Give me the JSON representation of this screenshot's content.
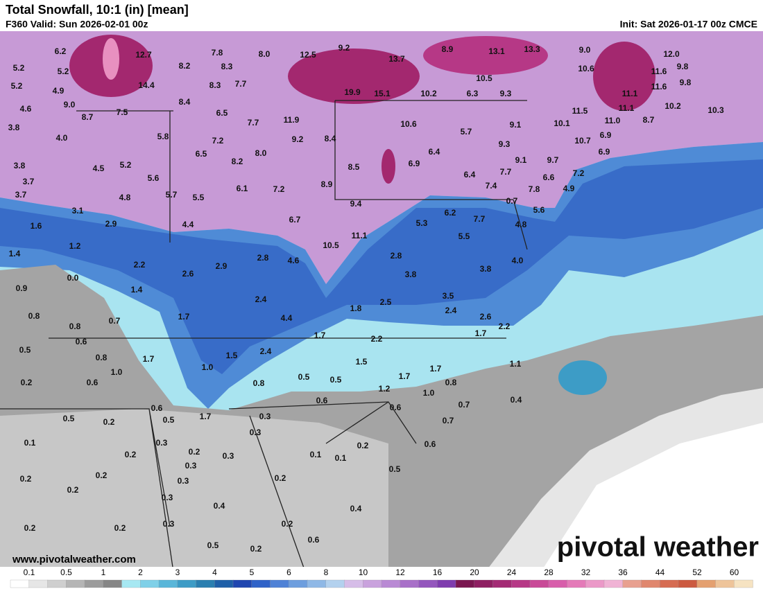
{
  "header": {
    "title": "Total Snowfall, 10:1 (in) [mean]",
    "valid": "F360 Valid: Sun 2026-02-01 00z",
    "init": "Init: Sat 2026-01-17 00z CMCE"
  },
  "labels": [
    "6.2",
    "12.7",
    "7.8",
    "8.0",
    "12.5",
    "9.2",
    "8.9",
    "13.1",
    "13.3",
    "9.0",
    "12.0",
    "5.2",
    "5.2",
    "8.2",
    "8.3",
    "13.7",
    "10.6",
    "11.6",
    "9.8",
    "5.2",
    "4.9",
    "14.4",
    "8.3",
    "7.7",
    "10.5",
    "11.6",
    "9.8",
    "4.6",
    "9.0",
    "8.4",
    "19.9",
    "15.1",
    "10.2",
    "6.3",
    "9.3",
    "11.1",
    "8.7",
    "7.5",
    "6.5",
    "7.7",
    "11.9",
    "11.5",
    "11.1",
    "10.2",
    "10.3",
    "3.8",
    "4.0",
    "5.8",
    "7.2",
    "9.2",
    "8.4",
    "10.6",
    "5.7",
    "9.1",
    "10.1",
    "11.0",
    "8.7",
    "9.3",
    "10.7",
    "6.9",
    "6.9",
    "3.8",
    "4.5",
    "5.2",
    "6.5",
    "8.2",
    "8.0",
    "8.5",
    "6.9",
    "6.4",
    "9.1",
    "9.7",
    "7.2",
    "7.7",
    "3.7",
    "5.6",
    "6.1",
    "7.2",
    "8.9",
    "6.4",
    "7.4",
    "6.6",
    "4.9",
    "7.8",
    "3.7",
    "4.8",
    "5.7",
    "5.5",
    "9.4",
    "0.7",
    "5.6",
    "3.1",
    "6.2",
    "7.7",
    "6.7",
    "1.6",
    "2.9",
    "4.4",
    "5.3",
    "4.8",
    "11.1",
    "5.5",
    "1.2",
    "10.5",
    "1.4",
    "2.8",
    "4.6",
    "2.8",
    "4.0",
    "2.2",
    "2.9",
    "3.8",
    "0.0",
    "2.6",
    "3.8",
    "0.9",
    "1.4",
    "3.5",
    "2.4",
    "2.5",
    "1.7",
    "4.4",
    "1.8",
    "2.4",
    "2.6",
    "0.8",
    "0.7",
    "0.8",
    "2.2",
    "1.7",
    "2.2",
    "1.7",
    "0.6",
    "0.5",
    "0.8",
    "1.5",
    "2.4",
    "1.7",
    "1.5",
    "1.1",
    "1.0",
    "1.0",
    "1.7",
    "1.7",
    "0.2",
    "0.6",
    "0.5",
    "0.5",
    "0.8",
    "0.8",
    "1.2",
    "1.0",
    "0.4",
    "0.6",
    "0.6",
    "0.6",
    "0.7",
    "0.5",
    "0.2",
    "0.5",
    "1.7",
    "0.3",
    "0.7",
    "0.1",
    "0.3",
    "0.3",
    "0.2",
    "0.6",
    "0.2",
    "0.2",
    "0.3",
    "0.1",
    "0.1",
    "0.2",
    "0.3",
    "0.5",
    "0.2",
    "0.3",
    "0.2",
    "0.2",
    "0.3",
    "0.4",
    "0.4",
    "0.3",
    "0.2",
    "0.2",
    "0.2",
    "0.6",
    "0.5",
    "0.2"
  ],
  "footer": {
    "website": "www.pivotalweather.com",
    "logo": "pivotal weather"
  },
  "legend": {
    "ticks": [
      0.1,
      0.5,
      1,
      2,
      3,
      4,
      5,
      6,
      8,
      10,
      12,
      16,
      20,
      24,
      28,
      32,
      36,
      44,
      52,
      60
    ],
    "colors": [
      "#ffffff",
      "#e6e6e6",
      "#cfcfcf",
      "#b5b5b5",
      "#9c9c9c",
      "#868686",
      "#a6e8f2",
      "#7fd0e8",
      "#59b6d9",
      "#3d9cc6",
      "#2a7fb0",
      "#1e5fa8",
      "#1f46b0",
      "#2f62c8",
      "#4f82d6",
      "#6d9ede",
      "#8fb8e6",
      "#b3d1ee",
      "#d6bde8",
      "#c9a2dd",
      "#b98ad4",
      "#a870c8",
      "#9456bd",
      "#7f3cae",
      "#7a1650",
      "#8f1f62",
      "#a32a74",
      "#b63886",
      "#c94a98",
      "#d85eab",
      "#e47ab8",
      "#eb99c8",
      "#f0b3d5",
      "#e8a090",
      "#e0876e",
      "#d66c52",
      "#cc5a40",
      "#e4a070",
      "#eec49a",
      "#f6e3c2"
    ]
  }
}
